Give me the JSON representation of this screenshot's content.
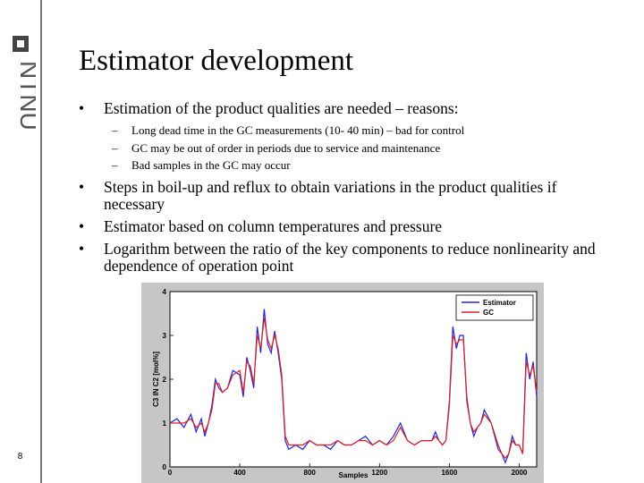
{
  "sidebar": {
    "logo_text": "NTNU",
    "page_number": "8"
  },
  "title": "Estimator development",
  "bullets": [
    {
      "text": "Estimation of the product qualities are needed – reasons:",
      "subs": [
        "Long dead time in the GC measurements (10- 40 min) – bad for control",
        "GC may be out of order in periods due to service and maintenance",
        "Bad samples in the GC may occur"
      ]
    },
    {
      "text": "Steps in boil-up and reflux to obtain variations in the product qualities if necessary"
    },
    {
      "text": "Estimator based on column temperatures and pressure"
    },
    {
      "text": "Logarithm between the ratio of the key components to reduce nonlinearity and dependence of operation point"
    }
  ],
  "chart_data": {
    "type": "line",
    "xlabel": "Samples",
    "ylabel": "C3 IN C2 [mol%]",
    "xlim": [
      0,
      2100
    ],
    "ylim": [
      0,
      4
    ],
    "xticks": [
      0,
      400,
      800,
      1200,
      1600,
      2000
    ],
    "yticks": [
      0,
      1,
      2,
      3,
      4
    ],
    "grid": false,
    "legend_position": "top-right",
    "series": [
      {
        "name": "Estimator",
        "color": "#2222dd",
        "x": [
          0,
          40,
          80,
          120,
          150,
          180,
          200,
          220,
          240,
          260,
          280,
          300,
          330,
          360,
          400,
          420,
          440,
          460,
          480,
          500,
          520,
          540,
          560,
          580,
          600,
          620,
          640,
          660,
          680,
          720,
          760,
          800,
          840,
          880,
          920,
          960,
          1000,
          1040,
          1080,
          1120,
          1160,
          1200,
          1240,
          1280,
          1320,
          1360,
          1400,
          1440,
          1480,
          1500,
          1520,
          1540,
          1560,
          1580,
          1600,
          1620,
          1640,
          1660,
          1680,
          1700,
          1720,
          1740,
          1760,
          1780,
          1800,
          1840,
          1880,
          1900,
          1920,
          1940,
          1960,
          1980,
          2000,
          2020,
          2040,
          2060,
          2080,
          2100
        ],
        "y": [
          1.0,
          1.1,
          0.9,
          1.2,
          0.8,
          1.1,
          0.7,
          1.0,
          1.4,
          2.0,
          1.8,
          1.7,
          1.8,
          2.2,
          2.1,
          1.6,
          2.5,
          2.2,
          1.8,
          3.2,
          2.6,
          3.6,
          2.8,
          2.6,
          3.1,
          2.6,
          2.0,
          0.6,
          0.4,
          0.5,
          0.4,
          0.6,
          0.5,
          0.5,
          0.4,
          0.6,
          0.5,
          0.5,
          0.6,
          0.7,
          0.5,
          0.6,
          0.5,
          0.7,
          1.0,
          0.6,
          0.5,
          0.6,
          0.6,
          0.6,
          0.8,
          0.6,
          0.5,
          0.6,
          1.5,
          3.2,
          2.7,
          3.0,
          3.0,
          1.5,
          1.0,
          0.7,
          0.9,
          1.0,
          1.3,
          1.0,
          0.4,
          0.3,
          0.1,
          0.3,
          0.7,
          0.5,
          0.5,
          0.3,
          2.6,
          2.0,
          2.4,
          1.6
        ]
      },
      {
        "name": "GC",
        "color": "#dd2222",
        "x": [
          0,
          40,
          80,
          120,
          150,
          180,
          200,
          220,
          240,
          260,
          280,
          300,
          330,
          360,
          400,
          420,
          440,
          460,
          480,
          500,
          520,
          540,
          560,
          580,
          600,
          620,
          640,
          660,
          680,
          720,
          760,
          800,
          840,
          880,
          920,
          960,
          1000,
          1040,
          1080,
          1120,
          1160,
          1200,
          1240,
          1280,
          1320,
          1360,
          1400,
          1440,
          1480,
          1500,
          1520,
          1540,
          1560,
          1580,
          1600,
          1620,
          1640,
          1660,
          1680,
          1700,
          1720,
          1740,
          1760,
          1780,
          1800,
          1840,
          1880,
          1900,
          1920,
          1940,
          1960,
          1980,
          2000,
          2020,
          2040,
          2060,
          2080,
          2100
        ],
        "y": [
          1.0,
          1.0,
          1.0,
          1.1,
          0.9,
          1.0,
          0.8,
          1.0,
          1.3,
          1.9,
          1.9,
          1.7,
          1.8,
          2.1,
          2.2,
          1.7,
          2.4,
          2.3,
          1.9,
          3.0,
          2.7,
          3.4,
          2.9,
          2.7,
          3.0,
          2.7,
          2.1,
          0.7,
          0.5,
          0.5,
          0.5,
          0.6,
          0.5,
          0.5,
          0.5,
          0.6,
          0.5,
          0.5,
          0.6,
          0.6,
          0.5,
          0.6,
          0.5,
          0.6,
          0.9,
          0.6,
          0.5,
          0.6,
          0.6,
          0.6,
          0.7,
          0.6,
          0.5,
          0.6,
          1.4,
          3.0,
          2.8,
          2.9,
          2.9,
          1.6,
          1.0,
          0.8,
          0.9,
          1.0,
          1.2,
          1.0,
          0.5,
          0.3,
          0.2,
          0.3,
          0.6,
          0.5,
          0.5,
          0.3,
          2.4,
          2.1,
          2.3,
          1.7
        ]
      }
    ]
  }
}
